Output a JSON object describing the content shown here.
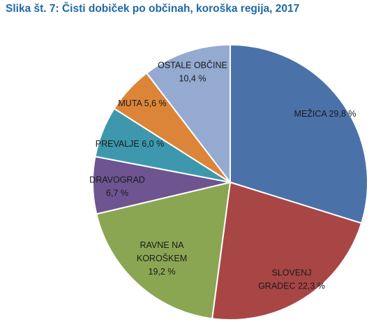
{
  "chart_data": {
    "type": "pie",
    "title": "Slika št. 7: Čisti dobiček po občinah, koroška regija, 2017",
    "unit": "%",
    "slices": [
      {
        "name": "MEŽICA",
        "value": 29.8,
        "label_lines": [
          "MEŽICA 29,8 %"
        ],
        "color": "#4a72a8"
      },
      {
        "name": "SLOVENJ GRADEC",
        "value": 22.3,
        "label_lines": [
          "SLOVENJ",
          "GRADEC 22,3 %"
        ],
        "color": "#a84645"
      },
      {
        "name": "RAVNE NA KOROŠKEM",
        "value": 19.2,
        "label_lines": [
          "RAVNE NA",
          "KOROŠKEM",
          "19,2 %"
        ],
        "color": "#8ba653"
      },
      {
        "name": "DRAVOGRAD",
        "value": 6.7,
        "label_lines": [
          "DRAVOGRAD",
          "6,7 %"
        ],
        "color": "#6e5491"
      },
      {
        "name": "PREVALJE",
        "value": 6.0,
        "label_lines": [
          "PREVALJE 6,0 %"
        ],
        "color": "#3d98ad"
      },
      {
        "name": "MUTA",
        "value": 5.6,
        "label_lines": [
          "MUTA 5,6 %"
        ],
        "color": "#dc8539"
      },
      {
        "name": "OSTALE OBČINE",
        "value": 10.4,
        "label_lines": [
          "OSTALE OBČINE",
          "10,4 %"
        ],
        "color": "#94aad0"
      }
    ]
  }
}
